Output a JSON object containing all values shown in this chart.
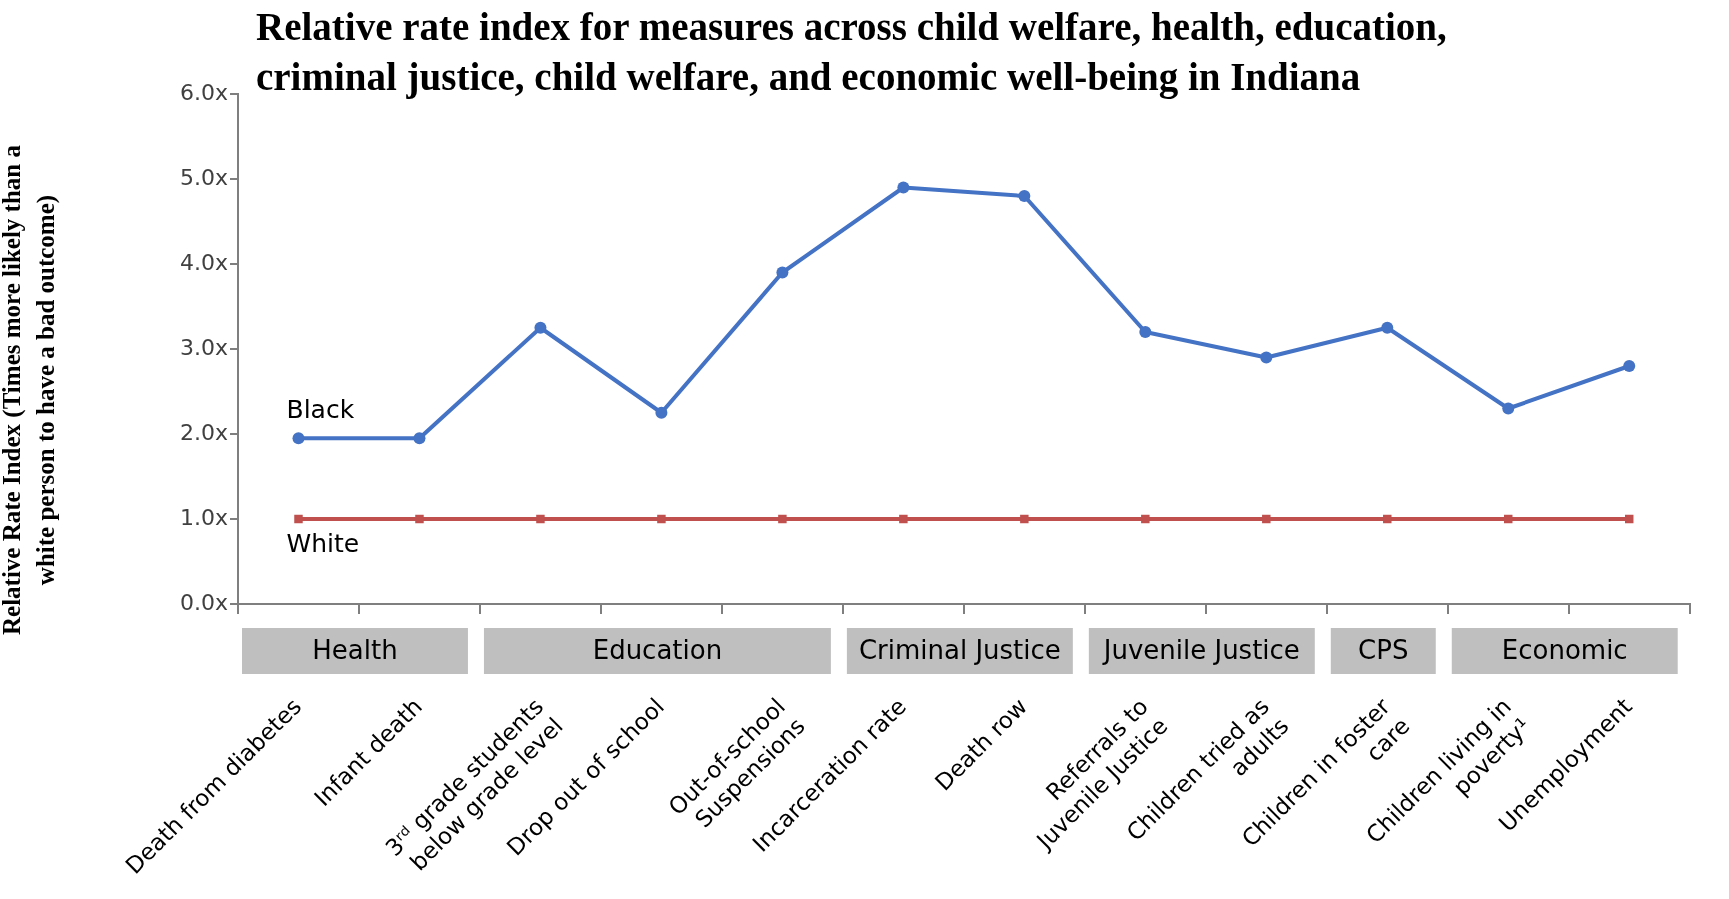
{
  "chart_data": {
    "type": "line",
    "title": "Relative rate index for measures across child welfare, health, education, criminal justice, child welfare, and economic well-being in Indiana",
    "ylabel": "Relative Rate Index (Times more likely than a white person to have a bad outcome)",
    "categories": [
      "Death from diabetes",
      "Infant death",
      "3ʳᵈ grade students\nbelow grade level",
      "Drop out of school",
      "Out-of-school\nSuspensions",
      "Incarceration rate",
      "Death row",
      "Referrals to\nJuvenile Justice",
      "Children tried as\nadults",
      "Children in foster\ncare",
      "Children living in\npoverty¹",
      "Unemployment"
    ],
    "series": [
      {
        "name": "Black",
        "color": "#4472c4",
        "marker": "circle",
        "values": [
          1.95,
          1.95,
          3.25,
          2.25,
          3.9,
          4.9,
          4.8,
          3.2,
          2.9,
          3.25,
          2.3,
          2.8
        ]
      },
      {
        "name": "White",
        "color": "#c0504d",
        "marker": "square",
        "values": [
          1,
          1,
          1,
          1,
          1,
          1,
          1,
          1,
          1,
          1,
          1,
          1
        ]
      }
    ],
    "ylim": [
      0,
      6
    ],
    "yticks": [
      {
        "value": 0,
        "label": "0.0x"
      },
      {
        "value": 1,
        "label": "1.0x"
      },
      {
        "value": 2,
        "label": "2.0x"
      },
      {
        "value": 3,
        "label": "3.0x"
      },
      {
        "value": 4,
        "label": "4.0x"
      },
      {
        "value": 5,
        "label": "5.0x"
      },
      {
        "value": 6,
        "label": "6.0x"
      }
    ],
    "annotations": [
      "Health",
      "Education",
      "Criminal Justice",
      "Juvenile Justice",
      "CPS",
      "Economic"
    ],
    "grid": false,
    "legend": false,
    "line_style": "solid"
  }
}
